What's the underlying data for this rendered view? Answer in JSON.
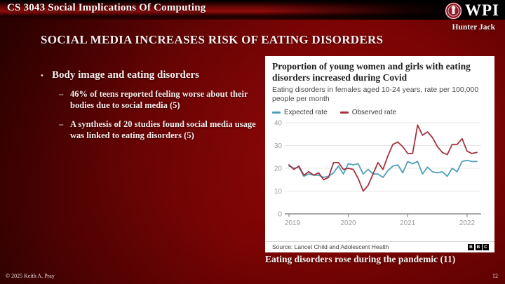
{
  "header": {
    "course_title": "CS 3043 Social Implications Of Computing",
    "logo_text": "WPI",
    "author": "Hunter Jack"
  },
  "slide": {
    "title": "SOCIAL MEDIA INCREASES RISK OF EATING DISORDERS",
    "bullets": [
      {
        "marker": "•",
        "text": "Body image and eating disorders",
        "level": 1
      },
      {
        "marker": "–",
        "text": "46% of teens reported feeling worse about their bodies due to social media (5)",
        "level": 2
      },
      {
        "marker": "–",
        "text": "A synthesis of 20 studies found social media usage was linked to eating disorders (5)",
        "level": 2
      }
    ],
    "caption": "Eating disorders rose during the pandemic (11)"
  },
  "footer": {
    "copyright": "© 2025 Keith A. Pray",
    "page_number": "12"
  },
  "chart_data": {
    "type": "line",
    "title": "Proportion of young women and girls with eating disorders increased during Covid",
    "subtitle": "Eating disorders in females aged 10-24 years, rate per 100,000 people per month",
    "source": "Source: Lancet Child and Adolescent Health",
    "attribution_blocks": [
      "B",
      "B",
      "C"
    ],
    "legend_position": "top",
    "grid": true,
    "ylim": [
      0,
      40
    ],
    "y_ticks": [
      0,
      10,
      20,
      30,
      40
    ],
    "x_tick_labels": [
      "2019",
      "2020",
      "2021",
      "2022"
    ],
    "x_unit": "monthly, Jan 2019 – Mar 2022",
    "legend": [
      {
        "name": "Expected rate",
        "color": "#4e9fba"
      },
      {
        "name": "Observed rate",
        "color": "#a5333e"
      }
    ],
    "series": [
      {
        "name": "Expected rate",
        "color": "#4e9fba",
        "values": [
          21,
          20,
          20.5,
          16.5,
          17.5,
          17,
          17,
          16,
          16.5,
          18,
          21,
          17.5,
          22,
          21.5,
          22,
          17.5,
          19.5,
          17.5,
          17.5,
          16,
          19,
          21,
          21.5,
          18,
          23,
          22,
          23,
          17.5,
          20.5,
          18.5,
          18,
          18.5,
          16.5,
          20,
          18.5,
          23,
          23.5,
          23,
          23
        ]
      },
      {
        "name": "Observed rate",
        "color": "#a5333e",
        "values": [
          21.5,
          19.5,
          21,
          17,
          18.5,
          17,
          18,
          15,
          16,
          22.5,
          22.5,
          19.5,
          20,
          19.5,
          15.5,
          10,
          12.5,
          17.5,
          22.5,
          19.5,
          25.5,
          30.5,
          31.5,
          29.5,
          26.5,
          26.5,
          39,
          34.5,
          36,
          33.5,
          29.5,
          27,
          26,
          30.5,
          30.5,
          33,
          27.5,
          26.5,
          27
        ]
      }
    ]
  }
}
